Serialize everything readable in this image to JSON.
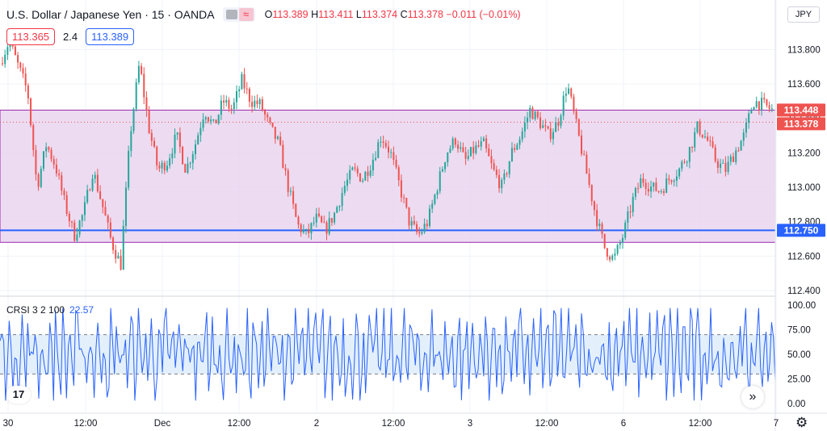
{
  "header": {
    "symbol": "U.S. Dollar / Japanese Yen · 15 · OANDA",
    "open_label": "O",
    "open": "113.389",
    "high_label": "H",
    "high": "113.411",
    "low_label": "L",
    "low": "113.374",
    "close_label": "C",
    "close": "113.378",
    "change": "−0.011 (−0.01%)"
  },
  "quote": {
    "bid": "113.365",
    "spread": "2.4",
    "ask": "113.389"
  },
  "currency_button": "JPY",
  "indicator": {
    "name": "CRSI 3 2 100",
    "value": "22.57"
  },
  "logo_text": "17",
  "scroll_icon": "double-chevron-right-icon",
  "settings_icon": "gear-icon",
  "colors": {
    "up": "#26a69a",
    "down": "#ef5350",
    "zone": "#e9d5ef",
    "zone_border": "#9c27b0",
    "level": "#2962ff",
    "crsi": "#2962ff"
  },
  "chart_data": [
    {
      "type": "candlestick",
      "ylim": [
        112.4,
        113.9
      ],
      "y_ticks": [
        "113.800",
        "113.600",
        "113.400",
        "113.200",
        "113.000",
        "112.800",
        "112.600",
        "112.400"
      ],
      "x_ticks": [
        "30",
        "12:00",
        "Dec",
        "12:00",
        "2",
        "12:00",
        "3",
        "12:00",
        "6",
        "12:00",
        "7"
      ],
      "zone": {
        "top": 113.448,
        "bottom": 112.68
      },
      "levels": [
        {
          "value": 112.75,
          "label": "112.750"
        }
      ],
      "price_labels": [
        {
          "value": 113.448,
          "label": "113.448"
        },
        {
          "value": 113.378,
          "label": "113.378"
        }
      ],
      "path": [
        113.72,
        113.85,
        113.7,
        113.55,
        113.0,
        113.25,
        113.12,
        112.9,
        112.72,
        112.85,
        113.1,
        112.9,
        112.68,
        112.55,
        113.3,
        113.72,
        113.35,
        113.1,
        113.15,
        113.3,
        113.1,
        113.25,
        113.45,
        113.35,
        113.5,
        113.45,
        113.62,
        113.5,
        113.48,
        113.35,
        113.25,
        113.0,
        112.78,
        112.72,
        112.82,
        112.75,
        112.85,
        113.0,
        113.1,
        113.05,
        113.15,
        113.3,
        113.2,
        113.0,
        112.8,
        112.72,
        112.8,
        113.0,
        113.2,
        113.28,
        113.15,
        113.22,
        113.25,
        113.1,
        113.0,
        113.2,
        113.3,
        113.45,
        113.38,
        113.3,
        113.38,
        113.6,
        113.35,
        113.1,
        112.85,
        112.65,
        112.58,
        112.72,
        112.92,
        113.05,
        113.0,
        112.98,
        113.05,
        113.1,
        113.2,
        113.35,
        113.28,
        113.15,
        113.1,
        113.2,
        113.3,
        113.5,
        113.48,
        113.45
      ]
    },
    {
      "type": "line",
      "name": "CRSI",
      "ylim": [
        0,
        100
      ],
      "y_ticks": [
        "100.00",
        "75.00",
        "50.00",
        "25.00",
        "0.00"
      ],
      "bands": [
        70,
        30
      ],
      "last_value": 22.57
    }
  ]
}
